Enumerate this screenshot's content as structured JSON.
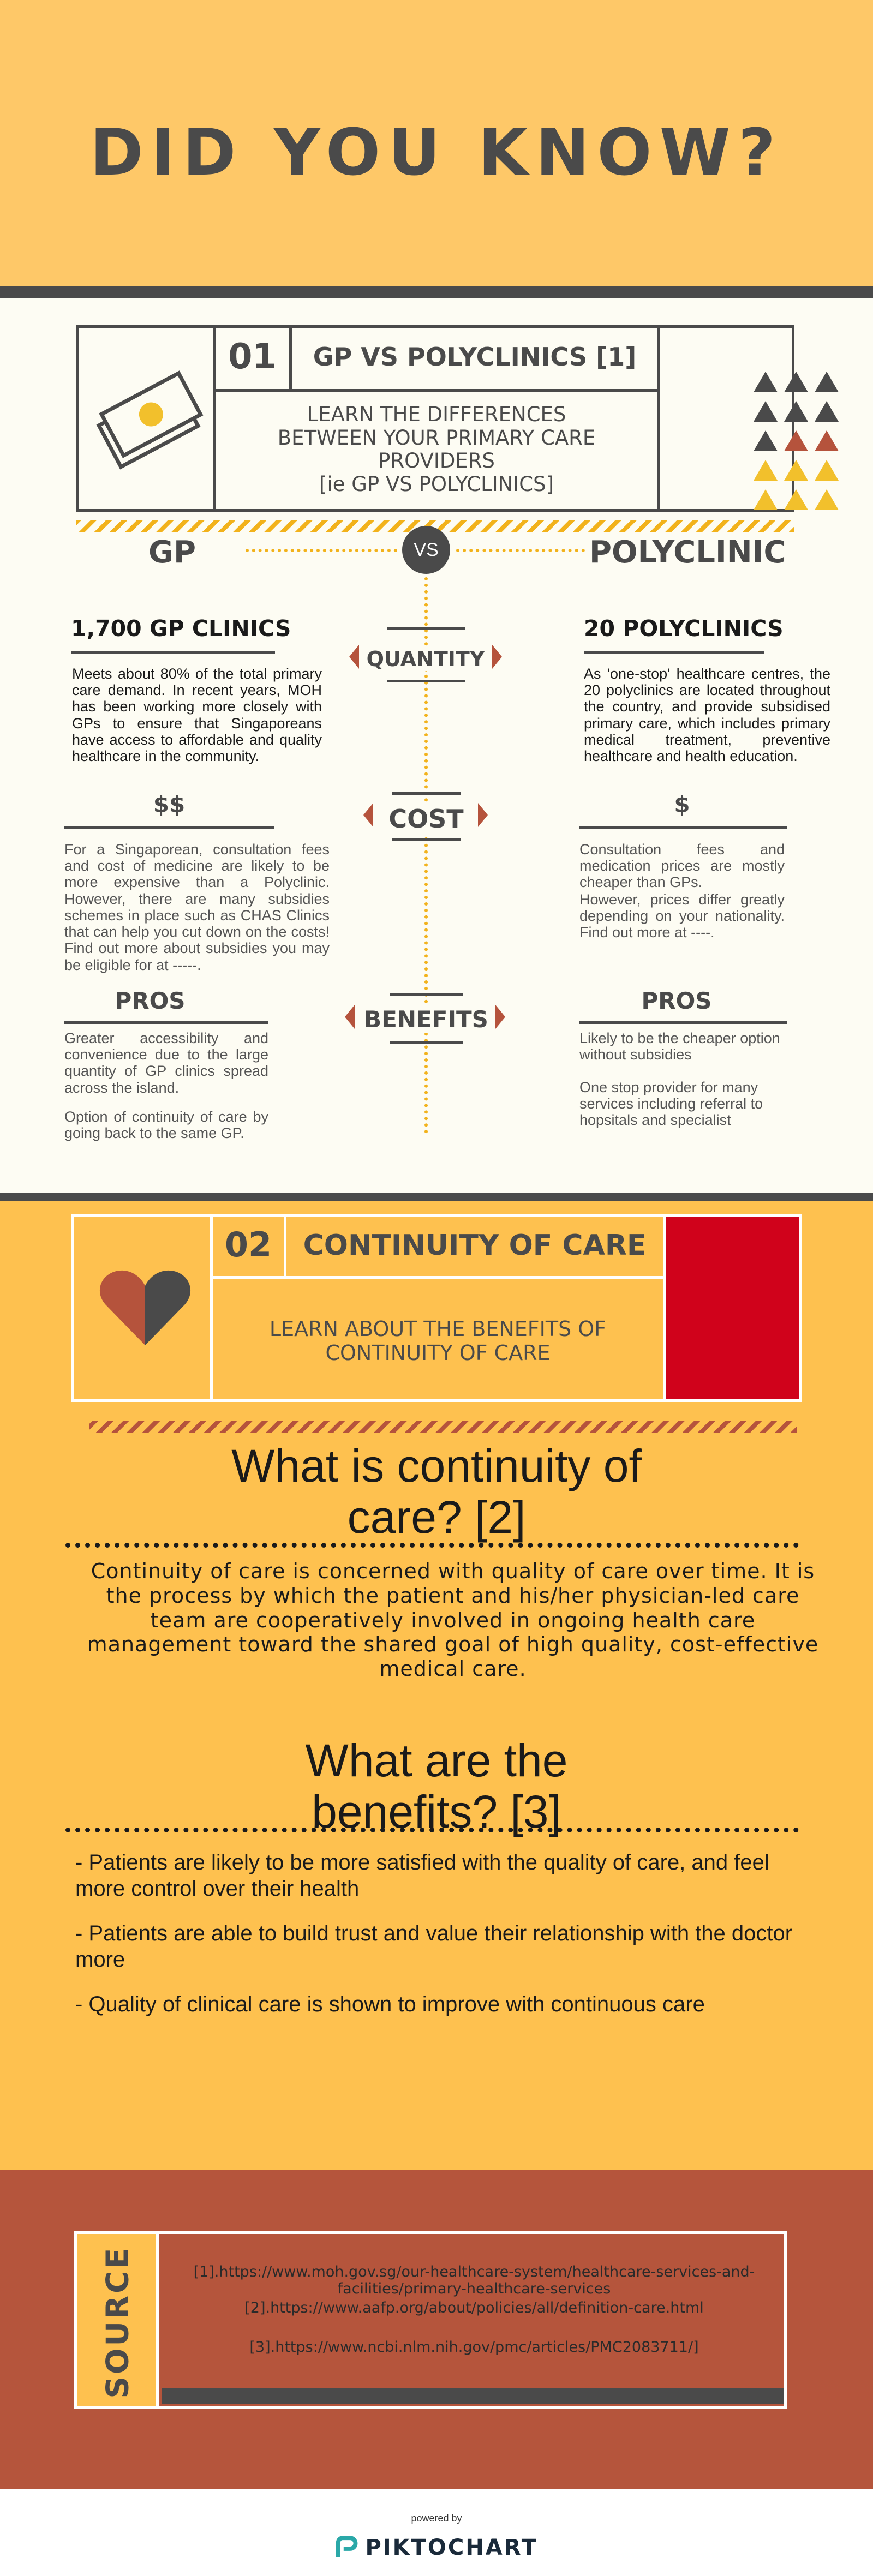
{
  "header": {
    "title": "DID YOU KNOW?"
  },
  "section1": {
    "number": "01",
    "heading": "GP VS POLYCLINICS [1]",
    "subheading": "LEARN THE DIFFERENCES\nBETWEEN YOUR PRIMARY CARE\nPROVIDERS\n[ie GP VS POLYCLINICS]",
    "left_label": "GP",
    "vs_label": "VS",
    "right_label": "POLYCLINIC",
    "center_labels": {
      "quantity": "QUANTITY",
      "cost": "COST",
      "benefits": "BENEFITS"
    },
    "gp": {
      "quantity_title": "1,700 GP CLINICS",
      "quantity_text": "Meets about 80% of the total primary care demand. In recent years, MOH has been working more closely with GPs to ensure that Singaporeans have access to affordable and quality healthcare in the community.",
      "cost_title": "$$",
      "cost_text": "For a Singaporean, consultation fees and cost of medicine are likely to be more expensive than a Polyclinic. However, there are many subsidies schemes in place such as CHAS Clinics that can help you cut down on the costs! Find out more about subsidies you may be eligible for at -----.",
      "pros_title": "PROS",
      "pros_text_1": "Greater accessibility and convenience due to the large quantity of GP clinics spread across the island.",
      "pros_text_2": "Option of continuity of care by going back to the same GP."
    },
    "polyclinic": {
      "quantity_title": "20 POLYCLINICS",
      "quantity_text": "As 'one-stop' healthcare centres, the 20 polyclinics are located throughout the country, and provide subsidised primary care, which includes primary medical treatment, preventive healthcare and health education.",
      "cost_title": "$",
      "cost_text_1": "Consultation fees and medication prices are mostly cheaper than GPs.",
      "cost_text_2": "However, prices differ greatly depending on your nationality. Find out more at ----.",
      "pros_title": "PROS",
      "pros_text_1": "Likely to be the cheaper option without subsidies",
      "pros_text_2": "One stop provider for many services including referral to hopsitals and specialist"
    }
  },
  "section2": {
    "number": "02",
    "heading": "CONTINUITY OF CARE",
    "subheading": "LEARN ABOUT THE BENEFITS OF\nCONTINUITY OF CARE",
    "q1": "What is continuity of\ncare? [2]",
    "answer": "Continuity of care is concerned with quality of care over time. It is the process by which the patient and his/her physician-led care team are cooperatively involved in ongoing health care management toward the shared goal of high quality, cost-effective medical care.",
    "q2": "What are the\nbenefits? [3]",
    "benefits": [
      "- Patients are likely to be more satisfied with the quality of care, and feel more control over their health",
      "- Patients are able to build trust and value their relationship with the doctor more",
      "- Quality of clinical care is shown to improve with continuous care"
    ]
  },
  "sources": {
    "label": "SOURCE",
    "ref1": "[1].https://www.moh.gov.sg/our-healthcare-system/healthcare-services-and-facilities/primary-healthcare-services",
    "ref2": "[2].https://www.aafp.org/about/policies/all/definition-care.html",
    "ref3": "[3].https://www.ncbi.nlm.nih.gov/pmc/articles/PMC2083711/]"
  },
  "footer": {
    "powered_by": "powered by",
    "brand": "PIKTOCHART"
  },
  "colors": {
    "yellow": "#fec868",
    "dark": "#4a4a4a",
    "cream": "#fdfcf3",
    "gold": "#fec14f",
    "rust": "#b5553c",
    "red": "#d0021b",
    "stripe": "#f2b21b"
  },
  "icons": {
    "money": "money-bill-icon",
    "triangles": "triangle-pattern-icon",
    "heart": "heart-icon",
    "logo": "piktochart-logo-icon"
  }
}
